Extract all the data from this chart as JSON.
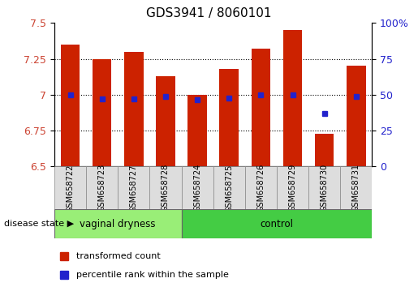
{
  "title": "GDS3941 / 8060101",
  "samples": [
    "GSM658722",
    "GSM658723",
    "GSM658727",
    "GSM658728",
    "GSM658724",
    "GSM658725",
    "GSM658726",
    "GSM658729",
    "GSM658730",
    "GSM658731"
  ],
  "bar_tops": [
    7.35,
    7.25,
    7.3,
    7.13,
    7.0,
    7.18,
    7.32,
    7.45,
    6.73,
    7.2
  ],
  "bar_bottoms": [
    6.5,
    6.5,
    6.5,
    6.5,
    6.5,
    6.5,
    6.5,
    6.5,
    6.5,
    6.5
  ],
  "percentile_values": [
    7.0,
    6.97,
    6.97,
    6.985,
    6.965,
    6.975,
    7.0,
    7.0,
    6.87,
    6.99
  ],
  "bar_color": "#cc2200",
  "percentile_color": "#2222cc",
  "ylim": [
    6.5,
    7.5
  ],
  "yticks_left": [
    6.5,
    6.75,
    7.0,
    7.25,
    7.5
  ],
  "yticks_right": [
    0,
    25,
    50,
    75,
    100
  ],
  "ytick_right_labels": [
    "0",
    "25",
    "50",
    "75",
    "100%"
  ],
  "disease_groups": [
    {
      "label": "vaginal dryness",
      "start": 0,
      "end": 4
    },
    {
      "label": "control",
      "start": 4,
      "end": 10
    }
  ],
  "vd_color": "#99ee77",
  "ctrl_color": "#44cc44",
  "disease_state_label": "disease state",
  "legend_items": [
    {
      "label": "transformed count",
      "color": "#cc2200"
    },
    {
      "label": "percentile rank within the sample",
      "color": "#2222cc"
    }
  ],
  "bar_width": 0.6,
  "grid_color": "#000000",
  "tick_label_color_left": "#cc4433",
  "tick_label_color_right": "#2222cc",
  "ytick_left_labels": [
    "6.5",
    "6.75",
    "7",
    "7.25",
    "7.5"
  ]
}
